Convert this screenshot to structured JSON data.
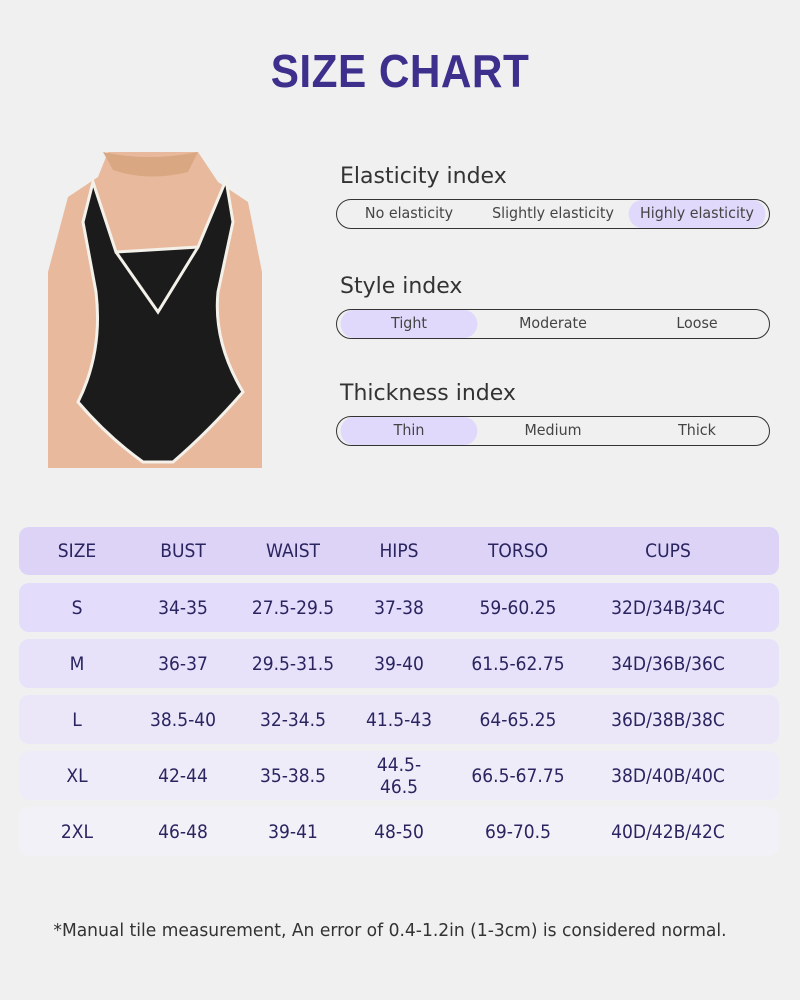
{
  "title": "SIZE CHART",
  "indexes": [
    {
      "title": "Elasticity index",
      "options": [
        "No elasticity",
        "Slightly elasticity",
        "Highly elasticity"
      ],
      "selected": 2
    },
    {
      "title": "Style index",
      "options": [
        "Tight",
        "Moderate",
        "Loose"
      ],
      "selected": 0
    },
    {
      "title": "Thickness index",
      "options": [
        "Thin",
        "Medium",
        "Thick"
      ],
      "selected": 0
    }
  ],
  "table": {
    "headers": [
      "SIZE",
      "BUST",
      "WAIST",
      "HIPS",
      "TORSO",
      "CUPS"
    ],
    "rows": [
      [
        "S",
        "34-35",
        "27.5-29.5",
        "37-38",
        "59-60.25",
        "32D/34B/34C"
      ],
      [
        "M",
        "36-37",
        "29.5-31.5",
        "39-40",
        "61.5-62.75",
        "34D/36B/36C"
      ],
      [
        "L",
        "38.5-40",
        "32-34.5",
        "41.5-43",
        "64-65.25",
        "36D/38B/38C"
      ],
      [
        "XL",
        "42-44",
        "35-38.5",
        "44.5-46.5",
        "66.5-67.75",
        "38D/40B/40C"
      ],
      [
        "2XL",
        "46-48",
        "39-41",
        "48-50",
        "69-70.5",
        "40D/42B/42C"
      ]
    ],
    "row_colors": [
      "#e3dcfa",
      "#e7e2f9",
      "#ebe7f9",
      "#efecf9",
      "#f3f1f8"
    ]
  },
  "note": "*Manual tile measurement, An error of 0.4-1.2in (1-3cm) is considered normal.",
  "colors": {
    "accent": "#3d2f8c",
    "highlight": "#e1d9fb",
    "header_row": "#dcd3f7"
  }
}
